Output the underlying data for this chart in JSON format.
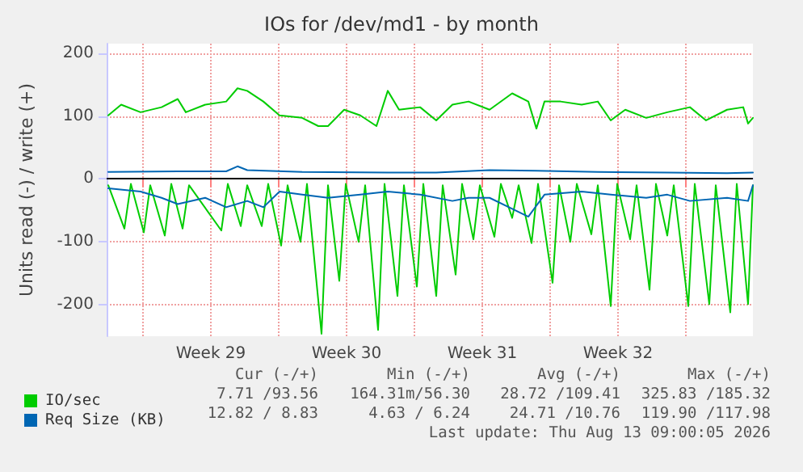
{
  "chart_data": {
    "type": "line",
    "title": "IOs for /dev/md1 - by month",
    "ylabel": "Units read (-) / write (+)",
    "xlim": [
      "2026-07-11T03:00",
      "2026-08-13T11:00"
    ],
    "xticks": [
      {
        "value": "2026-07-13T00:00",
        "label": null
      },
      {
        "value": "2026-07-16T12:00",
        "label": "Week 29"
      },
      {
        "value": "2026-07-20T00:00",
        "label": null
      },
      {
        "value": "2026-07-23T12:00",
        "label": "Week 30"
      },
      {
        "value": "2026-07-27T00:00",
        "label": null
      },
      {
        "value": "2026-07-30T12:00",
        "label": "Week 31"
      },
      {
        "value": "2026-08-03T00:00",
        "label": null
      },
      {
        "value": "2026-08-06T12:00",
        "label": "Week 32"
      },
      {
        "value": "2026-08-10T00:00",
        "label": null
      }
    ],
    "ylim": [
      -250,
      215
    ],
    "yticks": [
      -200,
      -100,
      0,
      100,
      200
    ],
    "grid": true,
    "legend": "bottom left",
    "marker": "none",
    "line_style": "solid",
    "ref_lines": [
      {
        "axis": "y",
        "value": 0,
        "label": null,
        "color": "#000000"
      }
    ],
    "series": [
      {
        "name": "IO/sec",
        "color": "#00cc00",
        "x": [
          "2026-07-11T05:00",
          "2026-07-11T21:00",
          "2026-07-12T21:00",
          "2026-07-13T23:00",
          "2026-07-14T19:00",
          "2026-07-15T05:00",
          "2026-07-16T05:00",
          "2026-07-17T07:00",
          "2026-07-17T21:00",
          "2026-07-18T09:00",
          "2026-07-19T05:00",
          "2026-07-20T01:00",
          "2026-07-21T05:00",
          "2026-07-22T01:00",
          "2026-07-22T13:00",
          "2026-07-23T09:00",
          "2026-07-24T05:00",
          "2026-07-25T01:00",
          "2026-07-25T15:00",
          "2026-07-26T05:00",
          "2026-07-27T07:00",
          "2026-07-28T03:00",
          "2026-07-28T23:00",
          "2026-07-29T19:00",
          "2026-07-30T21:00",
          "2026-08-01T01:00",
          "2026-08-01T21:00",
          "2026-08-02T07:00",
          "2026-08-02T17:00",
          "2026-08-03T13:00",
          "2026-08-04T15:00",
          "2026-08-05T11:00",
          "2026-08-06T03:00",
          "2026-08-06T21:00",
          "2026-08-07T23:00",
          "2026-08-09T01:00",
          "2026-08-10T05:00",
          "2026-08-11T01:00",
          "2026-08-12T03:00",
          "2026-08-12T23:00",
          "2026-08-13T05:00",
          "2026-08-13T11:00"
        ],
        "values": [
          101,
          118,
          106,
          114,
          127,
          106,
          118,
          123,
          144,
          140,
          123,
          101,
          97,
          84,
          84,
          110,
          101,
          84,
          140,
          110,
          114,
          93,
          118,
          123,
          110,
          136,
          123,
          80,
          123,
          123,
          118,
          123,
          93,
          110,
          97,
          106,
          114,
          93,
          110,
          114,
          88,
          97
        ]
      },
      {
        "color": "#00cc00",
        "x": [
          "2026-07-11T05:00",
          "2026-07-12T01:00",
          "2026-07-12T09:00",
          "2026-07-13T01:00",
          "2026-07-13T09:00",
          "2026-07-14T03:00",
          "2026-07-14T11:00",
          "2026-07-15T01:00",
          "2026-07-15T09:00",
          "2026-07-17T01:00",
          "2026-07-17T09:00",
          "2026-07-18T01:00",
          "2026-07-18T09:00",
          "2026-07-19T03:00",
          "2026-07-19T11:00",
          "2026-07-20T03:00",
          "2026-07-20T11:00",
          "2026-07-21T03:00",
          "2026-07-21T11:00",
          "2026-07-22T05:00",
          "2026-07-22T13:00",
          "2026-07-23T03:00",
          "2026-07-23T11:00",
          "2026-07-24T03:00",
          "2026-07-24T11:00",
          "2026-07-25T03:00",
          "2026-07-25T11:00",
          "2026-07-26T03:00",
          "2026-07-26T11:00",
          "2026-07-27T03:00",
          "2026-07-27T11:00",
          "2026-07-28T03:00",
          "2026-07-28T11:00",
          "2026-07-29T03:00",
          "2026-07-29T11:00",
          "2026-07-30T01:00",
          "2026-07-30T09:00",
          "2026-07-31T03:00",
          "2026-07-31T11:00",
          "2026-08-01T01:00",
          "2026-08-01T09:00",
          "2026-08-02T01:00",
          "2026-08-02T09:00",
          "2026-08-03T03:00",
          "2026-08-03T11:00",
          "2026-08-04T01:00",
          "2026-08-04T09:00",
          "2026-08-05T03:00",
          "2026-08-05T11:00",
          "2026-08-06T03:00",
          "2026-08-06T11:00",
          "2026-08-07T03:00",
          "2026-08-07T11:00",
          "2026-08-08T03:00",
          "2026-08-08T11:00",
          "2026-08-09T01:00",
          "2026-08-09T09:00",
          "2026-08-10T03:00",
          "2026-08-10T11:00",
          "2026-08-11T05:00",
          "2026-08-11T13:00",
          "2026-08-12T07:00",
          "2026-08-12T15:00",
          "2026-08-13T05:00",
          "2026-08-13T11:00"
        ],
        "values": [
          -10,
          -79,
          -8,
          -85,
          -10,
          -90,
          -8,
          -79,
          -10,
          -82,
          -8,
          -75,
          -10,
          -75,
          -8,
          -106,
          -10,
          -100,
          -8,
          -246,
          -10,
          -162,
          -8,
          -100,
          -10,
          -240,
          -8,
          -186,
          -10,
          -171,
          -8,
          -186,
          -10,
          -152,
          -8,
          -96,
          -10,
          -92,
          -8,
          -62,
          -10,
          -102,
          -8,
          -165,
          -10,
          -100,
          -8,
          -88,
          -10,
          -202,
          -8,
          -96,
          -10,
          -176,
          -8,
          -90,
          -10,
          -202,
          -8,
          -199,
          -10,
          -212,
          -8,
          -199,
          -10
        ]
      },
      {
        "name": "Req Size (KB)",
        "color": "#0066b3",
        "x": [
          "2026-07-11T05:00",
          "2026-07-14T19:00",
          "2026-07-17T07:00",
          "2026-07-17T21:00",
          "2026-07-18T09:00",
          "2026-07-21T05:00",
          "2026-07-25T15:00",
          "2026-07-28T03:00",
          "2026-07-30T21:00",
          "2026-08-02T07:00",
          "2026-08-05T11:00",
          "2026-08-09T01:00",
          "2026-08-12T03:00",
          "2026-08-13T11:00"
        ],
        "values": [
          11,
          12,
          12,
          20,
          14,
          11,
          10,
          10,
          14,
          13,
          11,
          10,
          9,
          10
        ]
      },
      {
        "color": "#0066b3",
        "x": [
          "2026-07-11T05:00",
          "2026-07-12T21:00",
          "2026-07-13T23:00",
          "2026-07-14T19:00",
          "2026-07-16T05:00",
          "2026-07-17T07:00",
          "2026-07-18T09:00",
          "2026-07-19T05:00",
          "2026-07-20T01:00",
          "2026-07-21T05:00",
          "2026-07-22T13:00",
          "2026-07-24T05:00",
          "2026-07-25T15:00",
          "2026-07-27T07:00",
          "2026-07-28T23:00",
          "2026-07-29T19:00",
          "2026-07-30T21:00",
          "2026-08-01T21:00",
          "2026-08-02T17:00",
          "2026-08-04T15:00",
          "2026-08-06T03:00",
          "2026-08-07T23:00",
          "2026-08-09T01:00",
          "2026-08-10T05:00",
          "2026-08-12T03:00",
          "2026-08-13T05:00",
          "2026-08-13T11:00"
        ],
        "values": [
          -15,
          -20,
          -30,
          -40,
          -30,
          -45,
          -35,
          -45,
          -20,
          -25,
          -30,
          -25,
          -20,
          -25,
          -35,
          -30,
          -30,
          -60,
          -25,
          -20,
          -25,
          -30,
          -25,
          -35,
          -30,
          -35,
          -10
        ]
      }
    ],
    "annotations": [
      "Cur (-/+)",
      "Min (-/+)",
      "Avg (-/+)",
      "Max (-/+)",
      "7.71 /93.56",
      "164.31m/56.30",
      "28.72 /109.41",
      "325.83 /185.32",
      "12.82 / 8.83",
      "4.63 / 6.24",
      "24.71 /10.76",
      "119.90 /117.98",
      "Last update: Thu Aug 13 09:00:05 2026"
    ]
  }
}
